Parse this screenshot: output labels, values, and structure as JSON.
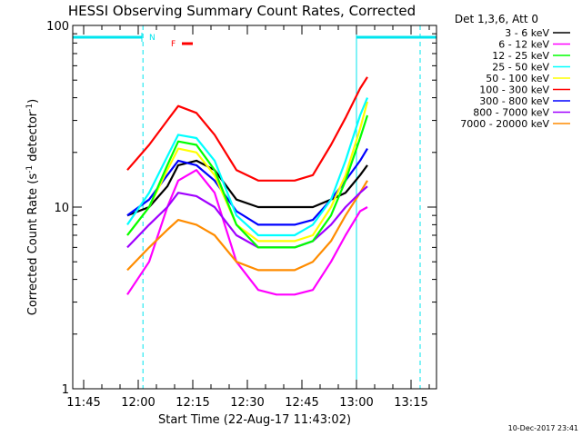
{
  "chart_data": {
    "type": "line",
    "title": "HESSI Observing Summary Count Rates, Corrected",
    "xlabel": "Start Time (22-Aug-17 11:43:02)",
    "ylabel": "Corrected Count Rate (s^-1 detector^-1)",
    "ylabel_parts": {
      "pre": "Corrected Count Rate (s",
      "sup1": "-1",
      "mid": " detector",
      "sup2": "-1",
      "post": ")"
    },
    "x_range_min": [
      -2,
      78
    ],
    "x_ticks": [
      {
        "t": 2,
        "label": "11:45"
      },
      {
        "t": 17,
        "label": "12:00"
      },
      {
        "t": 32,
        "label": "12:15"
      },
      {
        "t": 47,
        "label": "12:30"
      },
      {
        "t": 62,
        "label": "12:45"
      },
      {
        "t": 77,
        "label": "13:00"
      },
      {
        "t": 92,
        "label": "13:15"
      }
    ],
    "x_axis_range": [
      -1,
      99
    ],
    "y_scale": "log",
    "ylim": [
      1,
      100
    ],
    "y_ticks": [
      {
        "v": 1,
        "label": "1"
      },
      {
        "v": 10,
        "label": "10"
      },
      {
        "v": 100,
        "label": "100"
      }
    ],
    "legend": {
      "header": "Det 1,3,6, Att 0",
      "placement": "top-right-outside"
    },
    "series": [
      {
        "name": "3 - 6 keV",
        "color": "#000000",
        "x": [
          14,
          20,
          25,
          28,
          33,
          38,
          44,
          50,
          55,
          60,
          65,
          70,
          74,
          78,
          80
        ],
        "y": [
          9,
          10,
          13,
          17,
          18,
          16,
          11,
          10,
          10,
          10,
          10,
          11,
          12,
          15,
          17
        ]
      },
      {
        "name": "6 - 12 keV",
        "color": "#ff00ff",
        "x": [
          14,
          20,
          25,
          28,
          33,
          38,
          44,
          50,
          55,
          60,
          65,
          70,
          74,
          78,
          80
        ],
        "y": [
          3.3,
          5,
          10,
          14,
          16,
          12,
          5,
          3.5,
          3.3,
          3.3,
          3.5,
          5,
          7,
          9.5,
          10
        ]
      },
      {
        "name": "12 - 25 keV",
        "color": "#00ff00",
        "x": [
          14,
          20,
          25,
          28,
          33,
          38,
          44,
          50,
          55,
          60,
          65,
          70,
          74,
          78,
          80
        ],
        "y": [
          7,
          10,
          17,
          23,
          22,
          16,
          8,
          6,
          6,
          6,
          6.5,
          9,
          14,
          24,
          32
        ]
      },
      {
        "name": "25 - 50 keV",
        "color": "#00ffff",
        "x": [
          14,
          20,
          25,
          28,
          33,
          38,
          44,
          50,
          55,
          60,
          65,
          70,
          74,
          78,
          80
        ],
        "y": [
          8,
          12,
          19,
          25,
          24,
          18,
          9,
          7,
          7,
          7,
          8,
          11,
          18,
          32,
          40
        ]
      },
      {
        "name": "50 - 100 keV",
        "color": "#ffff00",
        "x": [
          14,
          20,
          25,
          28,
          33,
          38,
          44,
          50,
          55,
          60,
          65,
          70,
          74,
          78,
          80
        ],
        "y": [
          7,
          10,
          16,
          21,
          20,
          15,
          8,
          6.5,
          6.5,
          6.5,
          7,
          10,
          15,
          27,
          38
        ]
      },
      {
        "name": "100 - 300 keV",
        "color": "#ff0000",
        "x": [
          14,
          20,
          25,
          28,
          33,
          38,
          44,
          50,
          55,
          60,
          65,
          70,
          74,
          78,
          80
        ],
        "y": [
          16,
          22,
          30,
          36,
          33,
          25,
          16,
          14,
          14,
          14,
          15,
          22,
          31,
          45,
          52
        ]
      },
      {
        "name": "300 - 800 keV",
        "color": "#0000ff",
        "x": [
          14,
          20,
          25,
          28,
          33,
          38,
          44,
          50,
          55,
          60,
          65,
          70,
          74,
          78,
          80
        ],
        "y": [
          9,
          11,
          15,
          18,
          17,
          14,
          9.5,
          8,
          8,
          8,
          8.5,
          11,
          14,
          18,
          21
        ]
      },
      {
        "name": "800 - 7000 keV",
        "color": "#a000ff",
        "x": [
          14,
          20,
          25,
          28,
          33,
          38,
          44,
          50,
          55,
          60,
          65,
          70,
          74,
          78,
          80
        ],
        "y": [
          6,
          8,
          10,
          12,
          11.5,
          10,
          7,
          6,
          6,
          6,
          6.5,
          8,
          10,
          12,
          13
        ]
      },
      {
        "name": "7000 - 20000 keV",
        "color": "#ff8c00",
        "x": [
          14,
          20,
          25,
          28,
          33,
          38,
          44,
          50,
          55,
          60,
          65,
          70,
          74,
          78,
          80
        ],
        "y": [
          4.5,
          6,
          7.5,
          8.5,
          8,
          7,
          5,
          4.5,
          4.5,
          4.5,
          5,
          6.5,
          9,
          12,
          14
        ]
      }
    ],
    "observing_bars": [
      {
        "x": [
          -1,
          18
        ],
        "label": "N",
        "color": "#00e5ee"
      },
      {
        "x": [
          77,
          99
        ],
        "label": "",
        "color": "#00e5ee"
      }
    ],
    "flare_marker": {
      "label": "F",
      "x": [
        29,
        32
      ],
      "color": "#ff0000"
    },
    "night_lines": [
      -1,
      18.3,
      77,
      94.5
    ],
    "night_line_color": "#00e5ee"
  },
  "footer": {
    "date": "10-Dec-2017 23:41"
  }
}
